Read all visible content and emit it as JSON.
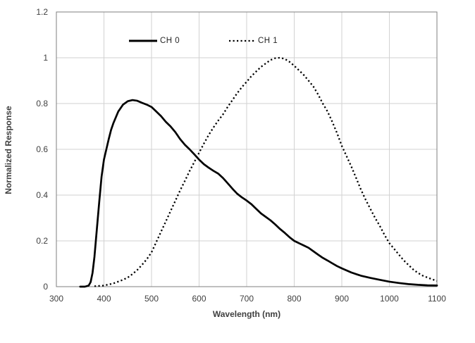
{
  "chart_data": {
    "type": "line",
    "title": "",
    "xlabel": "Wavelength (nm)",
    "ylabel": "Normalized Response",
    "xlim": [
      300,
      1100
    ],
    "ylim": [
      0,
      1.2
    ],
    "x_ticks": [
      300,
      400,
      500,
      600,
      700,
      800,
      900,
      1000,
      1100
    ],
    "y_ticks": [
      0,
      0.2,
      0.4,
      0.6,
      0.8,
      1,
      1.2
    ],
    "y_tick_labels": [
      "0",
      "0.2",
      "0.4",
      "0.6",
      "0.8",
      "1",
      "1.2"
    ],
    "grid": true,
    "legend_position": "top-inside",
    "series": [
      {
        "name": "CH 0",
        "style": "solid",
        "color": "#000000",
        "points": [
          [
            350,
            0
          ],
          [
            360,
            0
          ],
          [
            368,
            0.005
          ],
          [
            372,
            0.02
          ],
          [
            376,
            0.06
          ],
          [
            380,
            0.13
          ],
          [
            385,
            0.25
          ],
          [
            390,
            0.37
          ],
          [
            395,
            0.48
          ],
          [
            400,
            0.555
          ],
          [
            405,
            0.6
          ],
          [
            410,
            0.645
          ],
          [
            415,
            0.685
          ],
          [
            420,
            0.715
          ],
          [
            430,
            0.765
          ],
          [
            440,
            0.795
          ],
          [
            450,
            0.81
          ],
          [
            460,
            0.815
          ],
          [
            470,
            0.812
          ],
          [
            480,
            0.803
          ],
          [
            490,
            0.795
          ],
          [
            500,
            0.785
          ],
          [
            510,
            0.765
          ],
          [
            520,
            0.745
          ],
          [
            530,
            0.72
          ],
          [
            540,
            0.7
          ],
          [
            550,
            0.675
          ],
          [
            560,
            0.645
          ],
          [
            570,
            0.62
          ],
          [
            580,
            0.6
          ],
          [
            590,
            0.578
          ],
          [
            600,
            0.555
          ],
          [
            610,
            0.535
          ],
          [
            620,
            0.52
          ],
          [
            630,
            0.506
          ],
          [
            640,
            0.494
          ],
          [
            650,
            0.475
          ],
          [
            660,
            0.452
          ],
          [
            670,
            0.428
          ],
          [
            680,
            0.406
          ],
          [
            690,
            0.39
          ],
          [
            700,
            0.376
          ],
          [
            710,
            0.36
          ],
          [
            720,
            0.34
          ],
          [
            730,
            0.32
          ],
          [
            740,
            0.305
          ],
          [
            750,
            0.29
          ],
          [
            760,
            0.272
          ],
          [
            770,
            0.252
          ],
          [
            780,
            0.235
          ],
          [
            790,
            0.216
          ],
          [
            800,
            0.2
          ],
          [
            810,
            0.19
          ],
          [
            820,
            0.18
          ],
          [
            830,
            0.17
          ],
          [
            840,
            0.155
          ],
          [
            850,
            0.14
          ],
          [
            860,
            0.126
          ],
          [
            870,
            0.114
          ],
          [
            880,
            0.102
          ],
          [
            890,
            0.09
          ],
          [
            900,
            0.08
          ],
          [
            920,
            0.062
          ],
          [
            940,
            0.048
          ],
          [
            960,
            0.038
          ],
          [
            980,
            0.03
          ],
          [
            1000,
            0.022
          ],
          [
            1020,
            0.016
          ],
          [
            1040,
            0.011
          ],
          [
            1060,
            0.008
          ],
          [
            1080,
            0.006
          ],
          [
            1100,
            0.005
          ]
        ]
      },
      {
        "name": "CH 1",
        "style": "dotted",
        "color": "#000000",
        "points": [
          [
            380,
            0.002
          ],
          [
            400,
            0.005
          ],
          [
            420,
            0.014
          ],
          [
            440,
            0.03
          ],
          [
            450,
            0.04
          ],
          [
            460,
            0.055
          ],
          [
            470,
            0.073
          ],
          [
            480,
            0.095
          ],
          [
            490,
            0.12
          ],
          [
            500,
            0.15
          ],
          [
            510,
            0.195
          ],
          [
            520,
            0.24
          ],
          [
            530,
            0.285
          ],
          [
            540,
            0.33
          ],
          [
            550,
            0.375
          ],
          [
            560,
            0.42
          ],
          [
            570,
            0.462
          ],
          [
            580,
            0.505
          ],
          [
            590,
            0.545
          ],
          [
            600,
            0.585
          ],
          [
            610,
            0.625
          ],
          [
            620,
            0.662
          ],
          [
            630,
            0.695
          ],
          [
            640,
            0.725
          ],
          [
            650,
            0.752
          ],
          [
            660,
            0.785
          ],
          [
            670,
            0.815
          ],
          [
            680,
            0.845
          ],
          [
            690,
            0.872
          ],
          [
            700,
            0.895
          ],
          [
            710,
            0.92
          ],
          [
            720,
            0.94
          ],
          [
            730,
            0.96
          ],
          [
            740,
            0.975
          ],
          [
            750,
            0.99
          ],
          [
            760,
            0.998
          ],
          [
            770,
            1.0
          ],
          [
            780,
            0.995
          ],
          [
            790,
            0.982
          ],
          [
            800,
            0.965
          ],
          [
            810,
            0.945
          ],
          [
            820,
            0.925
          ],
          [
            830,
            0.9
          ],
          [
            840,
            0.875
          ],
          [
            850,
            0.84
          ],
          [
            860,
            0.8
          ],
          [
            870,
            0.765
          ],
          [
            880,
            0.72
          ],
          [
            890,
            0.67
          ],
          [
            900,
            0.615
          ],
          [
            910,
            0.57
          ],
          [
            920,
            0.525
          ],
          [
            930,
            0.475
          ],
          [
            940,
            0.425
          ],
          [
            950,
            0.38
          ],
          [
            960,
            0.34
          ],
          [
            970,
            0.3
          ],
          [
            980,
            0.265
          ],
          [
            990,
            0.225
          ],
          [
            1000,
            0.19
          ],
          [
            1010,
            0.165
          ],
          [
            1020,
            0.14
          ],
          [
            1030,
            0.115
          ],
          [
            1040,
            0.095
          ],
          [
            1050,
            0.075
          ],
          [
            1060,
            0.06
          ],
          [
            1070,
            0.048
          ],
          [
            1080,
            0.04
          ],
          [
            1090,
            0.032
          ],
          [
            1100,
            0.025
          ]
        ]
      }
    ]
  },
  "colors": {
    "curve": "#000000",
    "gridline": "#d2d2d2",
    "plot_border": "#7f7f7f",
    "label_text": "#3f3f3f"
  }
}
